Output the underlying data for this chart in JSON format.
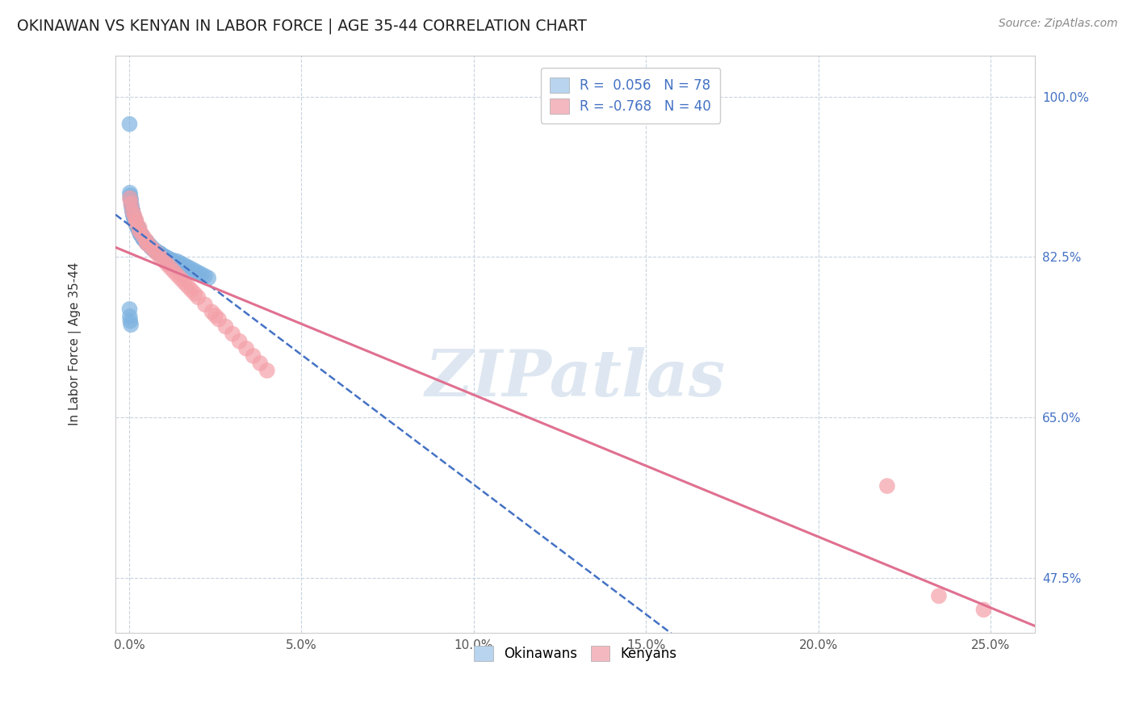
{
  "title": "OKINAWAN VS KENYAN IN LABOR FORCE | AGE 35-44 CORRELATION CHART",
  "source": "Source: ZipAtlas.com",
  "ylabel": "In Labor Force | Age 35-44",
  "xlabel_ticks": [
    0.0,
    0.05,
    0.1,
    0.15,
    0.2,
    0.25
  ],
  "xlabel_labels": [
    "0.0%",
    "5.0%",
    "10.0%",
    "15.0%",
    "20.0%",
    "25.0%"
  ],
  "ylim": [
    0.415,
    1.045
  ],
  "xlim": [
    -0.004,
    0.263
  ],
  "ytick_vals": [
    0.475,
    0.65,
    0.825,
    1.0
  ],
  "ytick_labels": [
    "47.5%",
    "65.0%",
    "82.5%",
    "100.0%"
  ],
  "okinawan_color": "#7eb3e0",
  "kenyan_color": "#f4a0a8",
  "okinawan_line_color": "#4472c4",
  "kenyan_line_color": "#e07090",
  "legend_okinawan_color": "#b8d4ee",
  "legend_kenyan_color": "#f4b8c0",
  "R_okinawan": 0.056,
  "N_okinawan": 78,
  "R_kenyan": -0.768,
  "N_kenyan": 40,
  "watermark": "ZIPatlas",
  "watermark_color": "#c8d8e8",
  "background_color": "#ffffff",
  "grid_color": "#c8d4e0",
  "okinawan_x": [
    0.0001,
    0.0002,
    0.0003,
    0.0004,
    0.0005,
    0.0006,
    0.0007,
    0.0008,
    0.0009,
    0.001,
    0.001,
    0.0011,
    0.0012,
    0.0013,
    0.0014,
    0.0015,
    0.0016,
    0.0017,
    0.0018,
    0.0019,
    0.002,
    0.002,
    0.0021,
    0.0022,
    0.0023,
    0.0024,
    0.0025,
    0.0026,
    0.0027,
    0.0028,
    0.003,
    0.003,
    0.0031,
    0.0032,
    0.0033,
    0.0035,
    0.0036,
    0.0038,
    0.004,
    0.004,
    0.0042,
    0.0045,
    0.005,
    0.005,
    0.0052,
    0.0055,
    0.006,
    0.006,
    0.0062,
    0.0065,
    0.007,
    0.007,
    0.0075,
    0.008,
    0.0082,
    0.009,
    0.009,
    0.0095,
    0.01,
    0.0105,
    0.011,
    0.0115,
    0.012,
    0.013,
    0.014,
    0.015,
    0.016,
    0.017,
    0.018,
    0.019,
    0.02,
    0.021,
    0.022,
    0.023,
    0.0001,
    0.0002,
    0.0003,
    0.0005
  ],
  "okinawan_y": [
    0.97,
    0.895,
    0.892,
    0.889,
    0.887,
    0.883,
    0.88,
    0.878,
    0.876,
    0.875,
    0.873,
    0.872,
    0.87,
    0.869,
    0.867,
    0.866,
    0.865,
    0.864,
    0.863,
    0.862,
    0.862,
    0.861,
    0.86,
    0.859,
    0.858,
    0.858,
    0.857,
    0.856,
    0.855,
    0.854,
    0.853,
    0.852,
    0.851,
    0.85,
    0.85,
    0.849,
    0.848,
    0.847,
    0.846,
    0.845,
    0.844,
    0.843,
    0.842,
    0.841,
    0.84,
    0.839,
    0.838,
    0.837,
    0.836,
    0.835,
    0.834,
    0.833,
    0.832,
    0.831,
    0.83,
    0.829,
    0.828,
    0.827,
    0.826,
    0.825,
    0.824,
    0.823,
    0.822,
    0.821,
    0.82,
    0.818,
    0.816,
    0.814,
    0.812,
    0.81,
    0.808,
    0.806,
    0.804,
    0.802,
    0.768,
    0.76,
    0.755,
    0.751
  ],
  "kenyan_x": [
    0.0002,
    0.0005,
    0.001,
    0.0015,
    0.002,
    0.002,
    0.003,
    0.003,
    0.004,
    0.005,
    0.005,
    0.006,
    0.007,
    0.008,
    0.009,
    0.01,
    0.011,
    0.012,
    0.013,
    0.014,
    0.015,
    0.016,
    0.017,
    0.018,
    0.019,
    0.02,
    0.022,
    0.024,
    0.025,
    0.026,
    0.028,
    0.03,
    0.032,
    0.034,
    0.036,
    0.038,
    0.04,
    0.22,
    0.235,
    0.248
  ],
  "kenyan_y": [
    0.889,
    0.883,
    0.875,
    0.87,
    0.865,
    0.862,
    0.857,
    0.853,
    0.848,
    0.843,
    0.84,
    0.837,
    0.833,
    0.829,
    0.825,
    0.821,
    0.817,
    0.813,
    0.809,
    0.805,
    0.801,
    0.797,
    0.793,
    0.789,
    0.785,
    0.781,
    0.773,
    0.765,
    0.761,
    0.757,
    0.749,
    0.741,
    0.733,
    0.725,
    0.717,
    0.709,
    0.701,
    0.575,
    0.455,
    0.44
  ]
}
